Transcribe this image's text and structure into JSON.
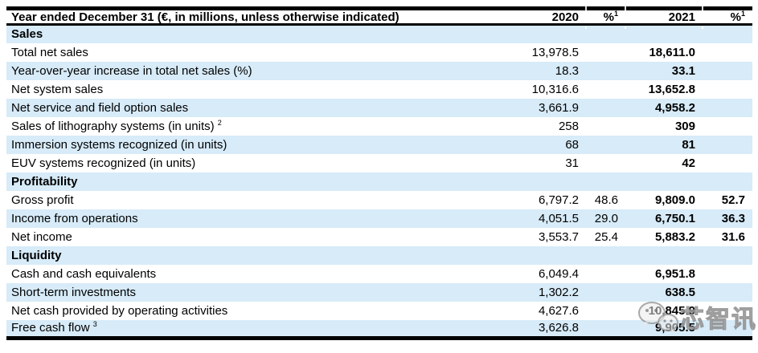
{
  "colors": {
    "row_alt_background": "#d7ebf8",
    "rule_color": "#000000",
    "text_color": "#000000",
    "watermark_gray": "#bebebe"
  },
  "table": {
    "header": {
      "label": "Year ended December 31 (€, in millions, unless otherwise indicated)",
      "col_2020": "2020",
      "pct": "%",
      "pct_sup": "1",
      "col_2021": "2021"
    },
    "rows": [
      {
        "type": "section",
        "label": "Sales",
        "v2020": "",
        "p2020": "",
        "v2021": "",
        "p2021": ""
      },
      {
        "type": "data",
        "label": "Total net sales",
        "v2020": "13,978.5",
        "p2020": "",
        "v2021": "18,611.0",
        "p2021": ""
      },
      {
        "type": "data",
        "label": "Year-over-year increase in total net sales (%)",
        "v2020": "18.3",
        "p2020": "",
        "v2021": "33.1",
        "p2021": ""
      },
      {
        "type": "data",
        "label": "Net system sales",
        "v2020": "10,316.6",
        "p2020": "",
        "v2021": "13,652.8",
        "p2021": ""
      },
      {
        "type": "data",
        "label": "Net service and field option sales",
        "v2020": "3,661.9",
        "p2020": "",
        "v2021": "4,958.2",
        "p2021": ""
      },
      {
        "type": "data",
        "label": "Sales of lithography systems (in units)",
        "label_sup": "2",
        "v2020": "258",
        "p2020": "",
        "v2021": "309",
        "p2021": ""
      },
      {
        "type": "data",
        "label": "Immersion systems recognized (in units)",
        "v2020": "68",
        "p2020": "",
        "v2021": "81",
        "p2021": ""
      },
      {
        "type": "data",
        "label": "EUV systems recognized (in units)",
        "v2020": "31",
        "p2020": "",
        "v2021": "42",
        "p2021": ""
      },
      {
        "type": "section",
        "label": "Profitability",
        "v2020": "",
        "p2020": "",
        "v2021": "",
        "p2021": ""
      },
      {
        "type": "data",
        "label": "Gross profit",
        "v2020": "6,797.2",
        "p2020": "48.6",
        "v2021": "9,809.0",
        "p2021": "52.7"
      },
      {
        "type": "data",
        "label": "Income from operations",
        "v2020": "4,051.5",
        "p2020": "29.0",
        "v2021": "6,750.1",
        "p2021": "36.3"
      },
      {
        "type": "data",
        "label": "Net income",
        "v2020": "3,553.7",
        "p2020": "25.4",
        "v2021": "5,883.2",
        "p2021": "31.6"
      },
      {
        "type": "section",
        "label": "Liquidity",
        "v2020": "",
        "p2020": "",
        "v2021": "",
        "p2021": ""
      },
      {
        "type": "data",
        "label": "Cash and cash equivalents",
        "v2020": "6,049.4",
        "p2020": "",
        "v2021": "6,951.8",
        "p2021": ""
      },
      {
        "type": "data",
        "label": "Short-term investments",
        "v2020": "1,302.2",
        "p2020": "",
        "v2021": "638.5",
        "p2021": ""
      },
      {
        "type": "data",
        "label": "Net cash provided by operating activities",
        "v2020": "4,627.6",
        "p2020": "",
        "v2021": "10,845.9",
        "p2021": ""
      },
      {
        "type": "data",
        "label": "Free cash flow",
        "label_sup": "3",
        "v2020": "3,626.8",
        "p2020": "",
        "v2021": "9,905.5",
        "p2021": ""
      }
    ]
  },
  "watermark": {
    "icon": "wechat-logo-icon",
    "text": "芯智讯"
  }
}
